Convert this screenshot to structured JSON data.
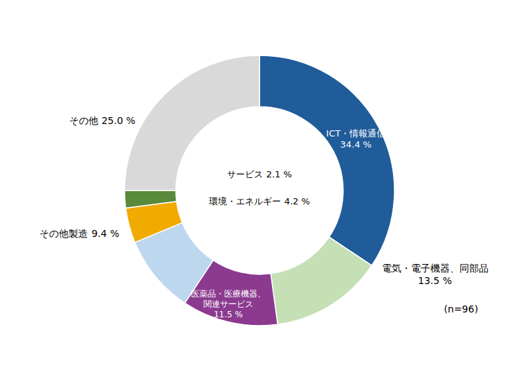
{
  "chart_data": {
    "type": "donut",
    "categories": [
      "ICT・情報通信",
      "電気・電子機器、同部品",
      "医薬品・医療機器、\n関連サービス",
      "その他製造",
      "環境・エネルギー",
      "サービス",
      "その他"
    ],
    "values": [
      34.4,
      13.5,
      11.5,
      9.4,
      4.2,
      2.1,
      25.0
    ],
    "value_labels": [
      "34.4 %",
      "13.5 %",
      "11.5 %",
      "9.4 %",
      "4.2 %",
      "2.1 %",
      "25.0 %"
    ],
    "data_labels": true,
    "colors": [
      "#1f5c99",
      "#c5e0b4",
      "#8b3a8f",
      "#bdd7ee",
      "#f0aa00",
      "#5a8a3c",
      "#d9d9d9"
    ],
    "annotations": [
      "(n=96)"
    ]
  }
}
